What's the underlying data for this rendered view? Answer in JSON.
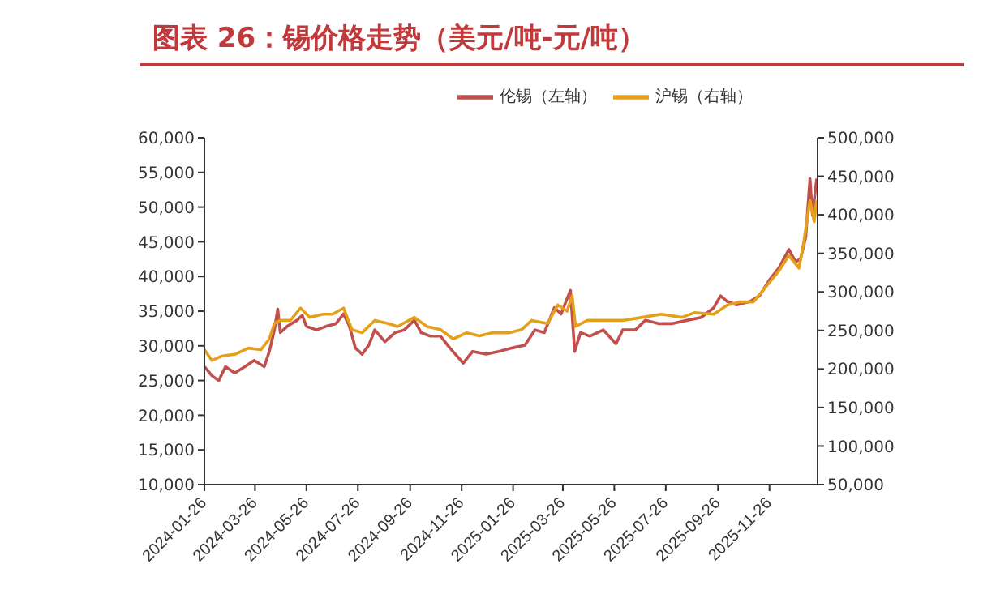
{
  "chart_data": {
    "type": "line",
    "title": "图表 26：锡价格走势（美元/吨-元/吨）",
    "legend": "top",
    "grid": false,
    "marker": "none",
    "line_style": "solid",
    "xlim": [
      "2024-01-26",
      "2026-01-22"
    ],
    "xticks": [
      "2024-01-26",
      "2024-03-26",
      "2024-05-26",
      "2024-07-26",
      "2024-09-26",
      "2024-11-26",
      "2025-01-26",
      "2025-03-26",
      "2025-05-26",
      "2025-07-26",
      "2025-09-26",
      "2025-11-26"
    ],
    "ylim": [
      10000,
      60000
    ],
    "yticks": [
      {
        "value": 10000,
        "label": "10,000"
      },
      {
        "value": 15000,
        "label": "15,000"
      },
      {
        "value": 20000,
        "label": "20,000"
      },
      {
        "value": 25000,
        "label": "25,000"
      },
      {
        "value": 30000,
        "label": "30,000"
      },
      {
        "value": 35000,
        "label": "35,000"
      },
      {
        "value": 40000,
        "label": "40,000"
      },
      {
        "value": 45000,
        "label": "45,000"
      },
      {
        "value": 50000,
        "label": "50,000"
      },
      {
        "value": 55000,
        "label": "55,000"
      },
      {
        "value": 60000,
        "label": "60,000"
      }
    ],
    "y2lim": [
      50000,
      500000
    ],
    "y2ticks": [
      {
        "value": 50000,
        "label": "50,000"
      },
      {
        "value": 100000,
        "label": "100,000"
      },
      {
        "value": 150000,
        "label": "150,000"
      },
      {
        "value": 200000,
        "label": "200,000"
      },
      {
        "value": 250000,
        "label": "250,000"
      },
      {
        "value": 300000,
        "label": "300,000"
      },
      {
        "value": 350000,
        "label": "350,000"
      },
      {
        "value": 400000,
        "label": "400,000"
      },
      {
        "value": 450000,
        "label": "450,000"
      },
      {
        "value": 500000,
        "label": "500,000"
      }
    ],
    "series": [
      {
        "name": "伦锡（左轴）",
        "color": "#c0504d",
        "x": [
          "2024-01-26",
          "2024-02-04",
          "2024-02-12",
          "2024-02-20",
          "2024-03-02",
          "2024-03-14",
          "2024-03-25",
          "2024-04-06",
          "2024-04-12",
          "2024-04-18",
          "2024-04-22",
          "2024-04-25",
          "2024-05-03",
          "2024-05-15",
          "2024-05-21",
          "2024-05-26",
          "2024-06-07",
          "2024-06-18",
          "2024-06-30",
          "2024-07-09",
          "2024-07-16",
          "2024-07-23",
          "2024-07-31",
          "2024-08-08",
          "2024-08-15",
          "2024-08-27",
          "2024-09-08",
          "2024-09-19",
          "2024-10-01",
          "2024-10-09",
          "2024-10-20",
          "2024-11-01",
          "2024-11-12",
          "2024-11-28",
          "2024-12-09",
          "2024-12-25",
          "2025-01-09",
          "2025-01-25",
          "2025-02-09",
          "2025-02-21",
          "2025-03-04",
          "2025-03-16",
          "2025-03-24",
          "2025-03-31",
          "2025-04-04",
          "2025-04-09",
          "2025-04-16",
          "2025-04-27",
          "2025-05-13",
          "2025-05-28",
          "2025-06-05",
          "2025-06-20",
          "2025-07-02",
          "2025-07-18",
          "2025-08-02",
          "2025-08-21",
          "2025-09-06",
          "2025-09-21",
          "2025-09-29",
          "2025-10-07",
          "2025-10-18",
          "2025-11-03",
          "2025-11-14",
          "2025-11-26",
          "2025-12-07",
          "2025-12-19",
          "2025-12-27",
          "2026-01-02",
          "2026-01-08",
          "2026-01-13",
          "2026-01-16",
          "2026-01-21"
        ],
        "values": [
          27000,
          25700,
          25000,
          27000,
          26100,
          27000,
          27900,
          27000,
          29200,
          32300,
          35300,
          31900,
          32800,
          33700,
          34400,
          32800,
          32300,
          32800,
          33200,
          34600,
          32800,
          29700,
          28800,
          30100,
          32300,
          30600,
          31900,
          32300,
          33700,
          31900,
          31400,
          31400,
          29700,
          27500,
          29200,
          28800,
          29200,
          29700,
          30100,
          32300,
          31900,
          35500,
          34600,
          36800,
          38000,
          29200,
          31900,
          31400,
          32300,
          30300,
          32300,
          32300,
          33700,
          33200,
          33200,
          33700,
          34100,
          35500,
          37200,
          36400,
          35900,
          36400,
          37200,
          39500,
          41200,
          43900,
          42100,
          42600,
          45700,
          54100,
          48800,
          54100
        ]
      },
      {
        "name": "沪锡（右轴）",
        "color": "#e5a01a",
        "axis": "y2",
        "x": [
          "2024-01-26",
          "2024-02-04",
          "2024-02-16",
          "2024-03-02",
          "2024-03-18",
          "2024-04-02",
          "2024-04-12",
          "2024-04-18",
          "2024-04-25",
          "2024-05-07",
          "2024-05-19",
          "2024-05-30",
          "2024-06-15",
          "2024-06-26",
          "2024-07-09",
          "2024-07-19",
          "2024-07-31",
          "2024-08-15",
          "2024-08-31",
          "2024-09-11",
          "2024-10-01",
          "2024-10-16",
          "2024-11-01",
          "2024-11-16",
          "2024-12-02",
          "2024-12-17",
          "2025-01-01",
          "2025-01-21",
          "2025-02-05",
          "2025-02-17",
          "2025-03-08",
          "2025-03-20",
          "2025-03-31",
          "2025-04-06",
          "2025-04-10",
          "2025-04-24",
          "2025-05-13",
          "2025-06-05",
          "2025-06-28",
          "2025-07-21",
          "2025-08-14",
          "2025-08-29",
          "2025-09-21",
          "2025-10-07",
          "2025-10-22",
          "2025-11-07",
          "2025-11-22",
          "2025-12-07",
          "2025-12-19",
          "2025-12-31",
          "2026-01-06",
          "2026-01-13",
          "2026-01-18",
          "2026-01-21"
        ],
        "values": [
          225000,
          211000,
          217000,
          219000,
          227000,
          225000,
          239000,
          259000,
          263000,
          263000,
          279000,
          267000,
          271000,
          271000,
          279000,
          251000,
          247000,
          263000,
          259000,
          255000,
          267000,
          255000,
          251000,
          239000,
          247000,
          243000,
          247000,
          247000,
          251000,
          263000,
          259000,
          283000,
          275000,
          295000,
          255000,
          263000,
          263000,
          263000,
          267000,
          271000,
          267000,
          273000,
          271000,
          283000,
          287000,
          287000,
          307000,
          327000,
          347000,
          331000,
          367000,
          419000,
          391000,
          419000
        ]
      }
    ]
  }
}
